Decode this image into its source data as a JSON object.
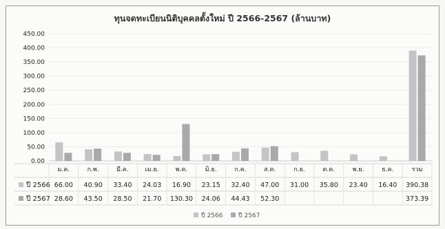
{
  "chart_data": {
    "type": "bar",
    "title": "ทุนจดทะเบียนนิติบุคคลตั้งใหม่ ปี 2566-2567 (ล้านบาท)",
    "categories": [
      "ม.ค.",
      "ก.พ.",
      "มี.ค.",
      "เม.ย.",
      "พ.ค.",
      "มิ.ย.",
      "ก.ค.",
      "ส.ค.",
      "ก.ย.",
      "ต.ค.",
      "พ.ย.",
      "ธ.ค.",
      "รวม"
    ],
    "series": [
      {
        "name": "ปี 2566",
        "color": "#c4c4c6",
        "values": [
          66.0,
          40.9,
          33.4,
          24.03,
          16.9,
          23.15,
          32.4,
          47.0,
          31.0,
          35.8,
          23.4,
          16.4,
          390.38
        ],
        "labels": [
          "66.00",
          "40.90",
          "33.40",
          "24.03",
          "16.90",
          "23.15",
          "32.40",
          "47.00",
          "31.00",
          "35.80",
          "23.40",
          "16.40",
          "390.38"
        ]
      },
      {
        "name": "ปี 2567",
        "color": "#a9a9ab",
        "values": [
          28.6,
          43.5,
          28.5,
          21.7,
          130.3,
          24.06,
          44.43,
          52.3,
          null,
          null,
          null,
          null,
          373.39
        ],
        "labels": [
          "28.60",
          "43.50",
          "28.50",
          "21.70",
          "130.30",
          "24.06",
          "44.43",
          "52.30",
          "",
          "",
          "",
          "",
          "373.39"
        ]
      }
    ],
    "yticks": [
      "450.00",
      "400.00",
      "350.00",
      "300.00",
      "250.00",
      "200.00",
      "150.00",
      "100.00",
      "50.00",
      "0.00"
    ],
    "ylim": [
      0,
      450
    ],
    "grid": true,
    "legend": "bottom",
    "data_table": true
  }
}
